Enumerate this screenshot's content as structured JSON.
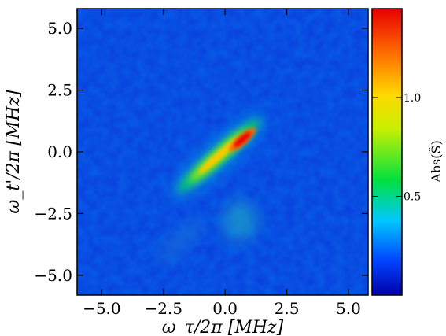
{
  "chart_data": {
    "type": "heatmap",
    "title": "",
    "xlabel": "ω_τ/2π [MHz]",
    "ylabel": "ω_t'/2π [MHz]",
    "xlim": [
      -6.0,
      5.8
    ],
    "ylim": [
      -5.8,
      5.8
    ],
    "x_ticks": [
      -5.0,
      -2.5,
      0.0,
      2.5,
      5.0
    ],
    "x_tick_labels": [
      "−5.0",
      "−2.5",
      "0.0",
      "2.5",
      "5.0"
    ],
    "y_ticks": [
      -5.0,
      -2.5,
      0.0,
      2.5,
      5.0
    ],
    "y_tick_labels": [
      "−5.0",
      "−2.5",
      "0.0",
      "2.5",
      "5.0"
    ],
    "colorbar": {
      "label": "Abs(Ŝ)",
      "range": [
        0.0,
        1.45
      ],
      "ticks": [
        0.5,
        1.0
      ],
      "tick_labels": [
        "0.5",
        "1.0"
      ],
      "colormap": [
        "#0000aa",
        "#0044ff",
        "#00c8ff",
        "#00e040",
        "#c8f000",
        "#ffd800",
        "#ff7000",
        "#e80000"
      ]
    },
    "features": [
      {
        "description_kind": "diagonal ridge",
        "center": [
          0.7,
          0.5
        ],
        "peak_value": 1.45,
        "extent_x": [
          -1.9,
          1.4
        ],
        "extent_y": [
          -1.6,
          1.3
        ]
      },
      {
        "description_kind": "secondary blob",
        "center": [
          0.6,
          -2.8
        ],
        "peak_value": 0.4
      }
    ],
    "grid": false,
    "background_value": 0.12
  }
}
